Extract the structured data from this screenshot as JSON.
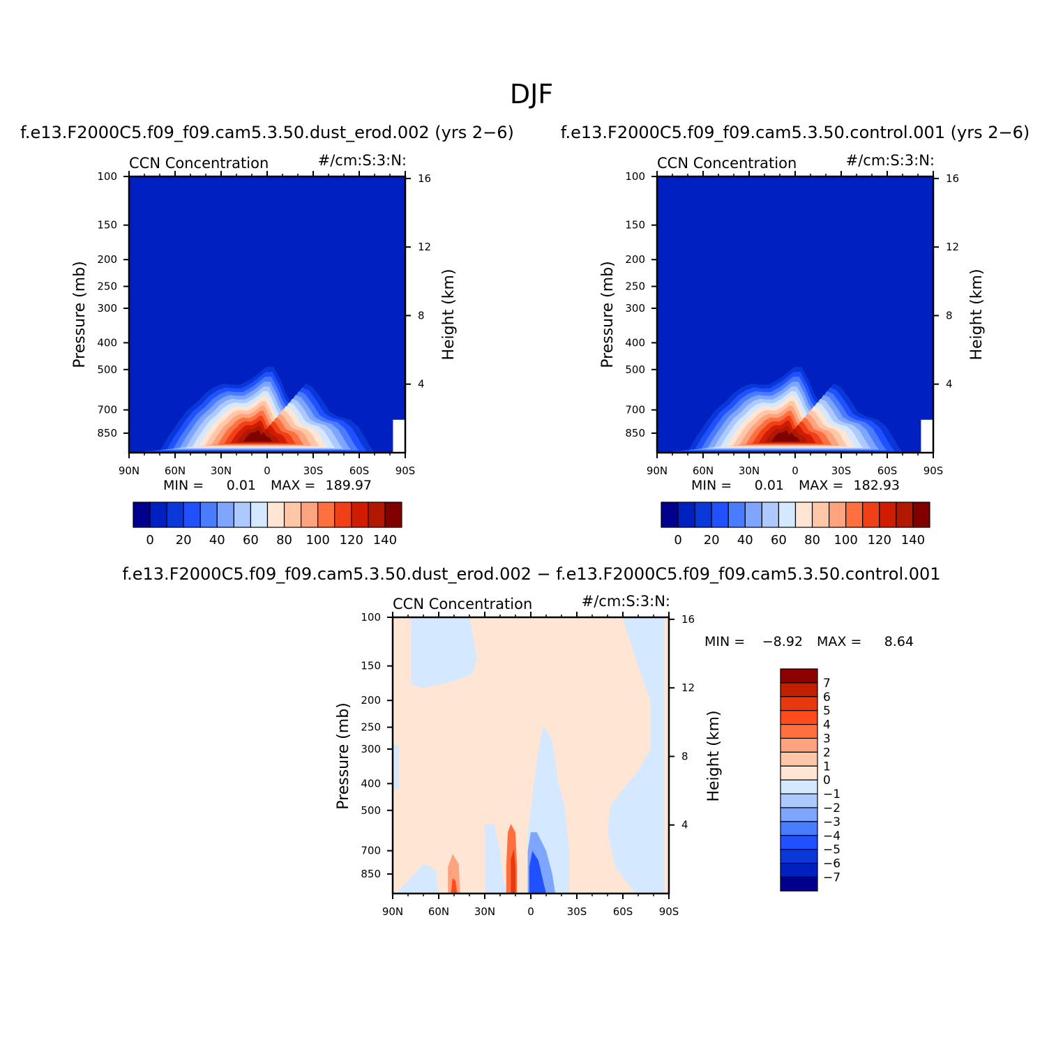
{
  "figure": {
    "title": "DJF"
  },
  "colors": {
    "abs_levels": [
      "#00008c",
      "#0020c0",
      "#0a37d8",
      "#2050ff",
      "#4a7cff",
      "#7ea6ff",
      "#aec9ff",
      "#d4e8ff",
      "#ffe6d4",
      "#ffc6a8",
      "#ffa27e",
      "#ff7040",
      "#f04018",
      "#d01c00",
      "#b01800",
      "#800000"
    ],
    "diff_levels": [
      "#00008c",
      "#0020c0",
      "#0a37d8",
      "#2050ff",
      "#4a7cff",
      "#7ea6ff",
      "#aec9ff",
      "#d4e8ff",
      "#ffe6d4",
      "#ffc6a8",
      "#ffa27e",
      "#ff7040",
      "#ff4a1c",
      "#e83810",
      "#c02000",
      "#8c0000"
    ]
  },
  "chart_data": [
    {
      "type": "heatmap",
      "panel_title": "f.e13.F2000C5.f09_f09.cam5.3.50.dust_erod.002 (yrs 2−6)",
      "left_label": "CCN Concentration",
      "right_label": "#/cm:S:3:N:",
      "ylabel": "Pressure (mb)",
      "ylabel_right": "Height (km)",
      "x_ticks": [
        "90N",
        "60N",
        "30N",
        "0",
        "30S",
        "60S",
        "90S"
      ],
      "y_ticks": [
        "100",
        "150",
        "200",
        "250",
        "300",
        "400",
        "500",
        "700",
        "850"
      ],
      "y_ticks_right": [
        "16",
        "12",
        "8",
        "4"
      ],
      "xlim": [
        90,
        -90
      ],
      "ylim": [
        100,
        1000
      ],
      "y_scale": "log",
      "min_label": "MIN =",
      "min_value": "0.01",
      "max_label": "MAX =",
      "max_value": "189.97",
      "colorbar_labels": [
        "0",
        "20",
        "40",
        "60",
        "80",
        "100",
        "120",
        "140"
      ],
      "colorbar_orientation": "horizontal",
      "contour_outline": [
        [
          90,
          1000
        ],
        [
          74,
          990
        ],
        [
          68,
          870
        ],
        [
          60,
          750
        ],
        [
          55,
          690
        ],
        [
          48,
          640
        ],
        [
          42,
          590
        ],
        [
          36,
          560
        ],
        [
          30,
          545
        ],
        [
          24,
          550
        ],
        [
          18,
          550
        ],
        [
          10,
          520
        ],
        [
          0,
          470
        ],
        [
          -5,
          470
        ],
        [
          -10,
          530
        ],
        [
          -14,
          600
        ],
        [
          -18,
          650
        ],
        [
          -23,
          590
        ],
        [
          -27,
          545
        ],
        [
          -32,
          560
        ],
        [
          -38,
          620
        ],
        [
          -44,
          700
        ],
        [
          -50,
          730
        ],
        [
          -58,
          750
        ],
        [
          -64,
          800
        ],
        [
          -68,
          870
        ],
        [
          -72,
          950
        ],
        [
          -75,
          1000
        ]
      ],
      "peak": {
        "lat": 7,
        "pressure": 900,
        "value": 189.97
      }
    },
    {
      "type": "heatmap",
      "panel_title": "f.e13.F2000C5.f09_f09.cam5.3.50.control.001 (yrs 2−6)",
      "left_label": "CCN Concentration",
      "right_label": "#/cm:S:3:N:",
      "ylabel": "Pressure (mb)",
      "ylabel_right": "Height (km)",
      "x_ticks": [
        "90N",
        "60N",
        "30N",
        "0",
        "30S",
        "60S",
        "90S"
      ],
      "y_ticks": [
        "100",
        "150",
        "200",
        "250",
        "300",
        "400",
        "500",
        "700",
        "850"
      ],
      "y_ticks_right": [
        "16",
        "12",
        "8",
        "4"
      ],
      "xlim": [
        90,
        -90
      ],
      "ylim": [
        100,
        1000
      ],
      "y_scale": "log",
      "min_label": "MIN =",
      "min_value": "0.01",
      "max_label": "MAX =",
      "max_value": "182.93",
      "colorbar_labels": [
        "0",
        "20",
        "40",
        "60",
        "80",
        "100",
        "120",
        "140"
      ],
      "colorbar_orientation": "horizontal",
      "contour_outline": [
        [
          90,
          1000
        ],
        [
          74,
          990
        ],
        [
          68,
          870
        ],
        [
          60,
          750
        ],
        [
          55,
          690
        ],
        [
          48,
          640
        ],
        [
          42,
          590
        ],
        [
          36,
          560
        ],
        [
          30,
          545
        ],
        [
          24,
          550
        ],
        [
          18,
          550
        ],
        [
          10,
          520
        ],
        [
          0,
          470
        ],
        [
          -5,
          470
        ],
        [
          -10,
          530
        ],
        [
          -14,
          600
        ],
        [
          -18,
          650
        ],
        [
          -23,
          590
        ],
        [
          -27,
          545
        ],
        [
          -32,
          560
        ],
        [
          -38,
          620
        ],
        [
          -44,
          700
        ],
        [
          -50,
          730
        ],
        [
          -58,
          750
        ],
        [
          -64,
          800
        ],
        [
          -68,
          870
        ],
        [
          -72,
          950
        ],
        [
          -75,
          1000
        ]
      ],
      "peak": {
        "lat": 7,
        "pressure": 900,
        "value": 182.93
      }
    },
    {
      "type": "heatmap",
      "panel_title": "f.e13.F2000C5.f09_f09.cam5.3.50.dust_erod.002 − f.e13.F2000C5.f09_f09.cam5.3.50.control.001",
      "left_label": "CCN Concentration",
      "right_label": "#/cm:S:3:N:",
      "ylabel": "Pressure (mb)",
      "ylabel_right": "Height (km)",
      "x_ticks": [
        "90N",
        "60N",
        "30N",
        "0",
        "30S",
        "60S",
        "90S"
      ],
      "y_ticks": [
        "100",
        "150",
        "200",
        "250",
        "300",
        "400",
        "500",
        "700",
        "850"
      ],
      "y_ticks_right": [
        "16",
        "12",
        "8",
        "4"
      ],
      "xlim": [
        90,
        -90
      ],
      "ylim": [
        100,
        1000
      ],
      "y_scale": "log",
      "min_label": "MIN =",
      "min_value": "−8.92",
      "max_label": "MAX =",
      "max_value": "8.64",
      "colorbar_labels": [
        "7",
        "6",
        "5",
        "4",
        "3",
        "2",
        "1",
        "0",
        "−1",
        "−2",
        "−3",
        "−4",
        "−5",
        "−6",
        "−7"
      ],
      "colorbar_orientation": "vertical",
      "negative_regions": [
        {
          "name": "upper-left",
          "value": -0.5,
          "outline": [
            [
              78,
              100
            ],
            [
              40,
              100
            ],
            [
              35,
              140
            ],
            [
              38,
              160
            ],
            [
              50,
              170
            ],
            [
              70,
              180
            ],
            [
              78,
              175
            ]
          ]
        },
        {
          "name": "upper-right",
          "value": -0.5,
          "outline": [
            [
              -60,
              100
            ],
            [
              -87,
              100
            ],
            [
              -87,
              1000
            ],
            [
              -68,
              1000
            ],
            [
              -55,
              800
            ],
            [
              -50,
              600
            ],
            [
              -52,
              480
            ],
            [
              -60,
              420
            ],
            [
              -70,
              360
            ],
            [
              -78,
              300
            ],
            [
              -78,
              200
            ],
            [
              -70,
              150
            ],
            [
              -62,
              110
            ]
          ]
        },
        {
          "name": "tropics",
          "value": -0.5,
          "outline": [
            [
              2,
              1000
            ],
            [
              2,
              600
            ],
            [
              -2,
              400
            ],
            [
              -5,
              300
            ],
            [
              -8,
              245
            ],
            [
              -14,
              280
            ],
            [
              -18,
              400
            ],
            [
              -22,
              480
            ],
            [
              -25,
              700
            ],
            [
              -25,
              1000
            ]
          ]
        },
        {
          "name": "left-edge",
          "value": -0.5,
          "outline": [
            [
              90,
              290
            ],
            [
              86,
              290
            ],
            [
              86,
              420
            ],
            [
              90,
              420
            ]
          ]
        },
        {
          "name": "low-left",
          "value": -0.5,
          "outline": [
            [
              88,
              1000
            ],
            [
              80,
              900
            ],
            [
              70,
              780
            ],
            [
              62,
              820
            ],
            [
              60,
              1000
            ]
          ]
        },
        {
          "name": "low-tropical",
          "value": -0.5,
          "outline": [
            [
              30,
              1000
            ],
            [
              30,
              560
            ],
            [
              24,
              560
            ],
            [
              20,
              700
            ],
            [
              18,
              900
            ],
            [
              14,
              1000
            ]
          ]
        },
        {
          "name": "low-right",
          "value": -0.5,
          "outline": [
            [
              -72,
              1000
            ],
            [
              -76,
              700
            ],
            [
              -80,
              650
            ],
            [
              -84,
              700
            ],
            [
              -82,
              900
            ],
            [
              -80,
              1000
            ]
          ]
        },
        {
          "name": "sh-core",
          "value": -3,
          "outline": [
            [
              2,
              1000
            ],
            [
              2,
              700
            ],
            [
              0,
              600
            ],
            [
              -4,
              600
            ],
            [
              -10,
              700
            ],
            [
              -14,
              850
            ],
            [
              -16,
              1000
            ]
          ]
        },
        {
          "name": "sh-strong",
          "value": -5,
          "outline": [
            [
              1,
              1000
            ],
            [
              1,
              800
            ],
            [
              -1,
              700
            ],
            [
              -5,
              760
            ],
            [
              -8,
              900
            ],
            [
              -10,
              1000
            ]
          ]
        }
      ],
      "positive_regions": [
        {
          "name": "nh-tropical",
          "value": 3,
          "outline": [
            [
              16,
              1000
            ],
            [
              16,
              800
            ],
            [
              15,
              600
            ],
            [
              13,
              560
            ],
            [
              10,
              600
            ],
            [
              9,
              800
            ],
            [
              9,
              1000
            ]
          ]
        },
        {
          "name": "nh-tropical-core",
          "value": 5,
          "outline": [
            [
              13,
              1000
            ],
            [
              13,
              750
            ],
            [
              11,
              690
            ],
            [
              10,
              800
            ],
            [
              10,
              1000
            ]
          ]
        },
        {
          "name": "nh-midlat",
          "value": 2,
          "outline": [
            [
              54,
              1000
            ],
            [
              54,
              800
            ],
            [
              51,
              720
            ],
            [
              47,
              780
            ],
            [
              46,
              1000
            ]
          ]
        },
        {
          "name": "nh-midlat-core",
          "value": 4,
          "outline": [
            [
              52,
              1000
            ],
            [
              51,
              880
            ],
            [
              49,
              900
            ],
            [
              48,
              1000
            ]
          ]
        }
      ],
      "background_value": 0.5
    }
  ]
}
